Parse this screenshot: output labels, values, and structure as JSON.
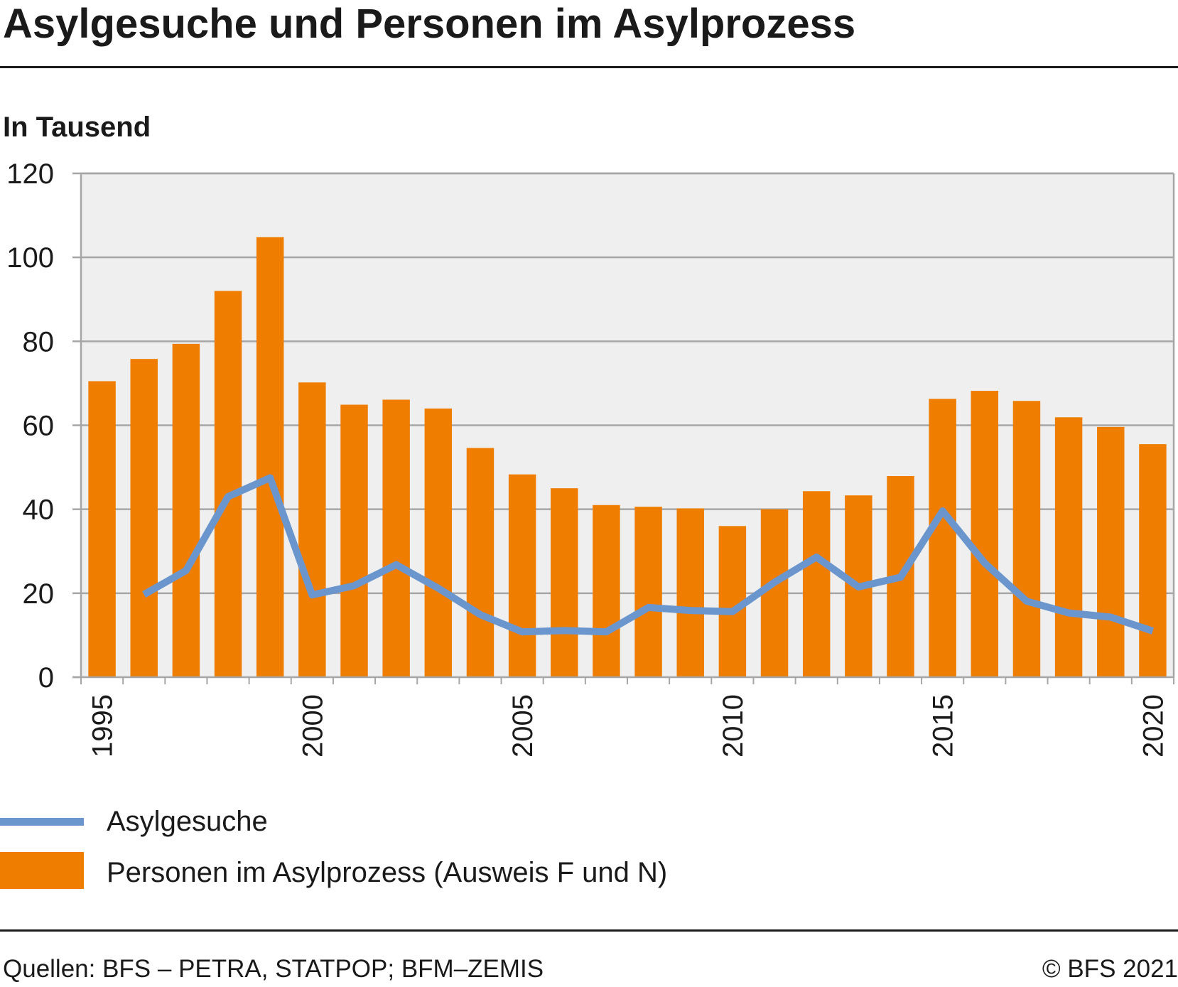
{
  "title": "Asylgesuche und Personen im Asylprozess",
  "unit_label": "In Tausend",
  "footer": {
    "source": "Quellen: BFS – PETRA, STATPOP; BFM–ZEMIS",
    "copyright": "© BFS 2021"
  },
  "colors": {
    "bar": "#ef7d00",
    "line": "#6b96cd",
    "plot_background": "#efefef",
    "grid": "#a6a6a6"
  },
  "chart_data": {
    "type": "bar",
    "title": "Asylgesuche und Personen im Asylprozess",
    "xlabel": "",
    "ylabel": "In Tausend",
    "ylim": [
      0,
      120
    ],
    "yticks": [
      0,
      20,
      40,
      60,
      80,
      100,
      120
    ],
    "xticks": [
      1995,
      2000,
      2005,
      2010,
      2015,
      2020
    ],
    "grid": true,
    "legend_placement": "bottom",
    "categories": [
      1995,
      1996,
      1997,
      1998,
      1999,
      2000,
      2001,
      2002,
      2003,
      2004,
      2005,
      2006,
      2007,
      2008,
      2009,
      2010,
      2011,
      2012,
      2013,
      2014,
      2015,
      2016,
      2017,
      2018,
      2019,
      2020
    ],
    "series": [
      {
        "name": "Personen im Asylprozess (Ausweis F und N)",
        "type": "bar",
        "values": [
          70.5,
          75.8,
          79.4,
          92.0,
          104.8,
          70.2,
          64.9,
          66.1,
          64.0,
          54.6,
          48.3,
          45.0,
          41.0,
          40.6,
          40.2,
          36.0,
          40.0,
          44.3,
          43.3,
          47.9,
          66.3,
          68.2,
          65.8,
          61.9,
          59.6,
          55.5
        ]
      },
      {
        "name": "Asylgesuche",
        "type": "line",
        "values": [
          null,
          19.7,
          25.4,
          43.0,
          47.5,
          19.6,
          21.8,
          26.8,
          21.2,
          14.9,
          10.8,
          11.1,
          10.8,
          16.6,
          15.9,
          15.6,
          22.6,
          28.6,
          21.5,
          23.8,
          39.6,
          27.2,
          18.1,
          15.3,
          14.3,
          11.0
        ]
      }
    ]
  }
}
